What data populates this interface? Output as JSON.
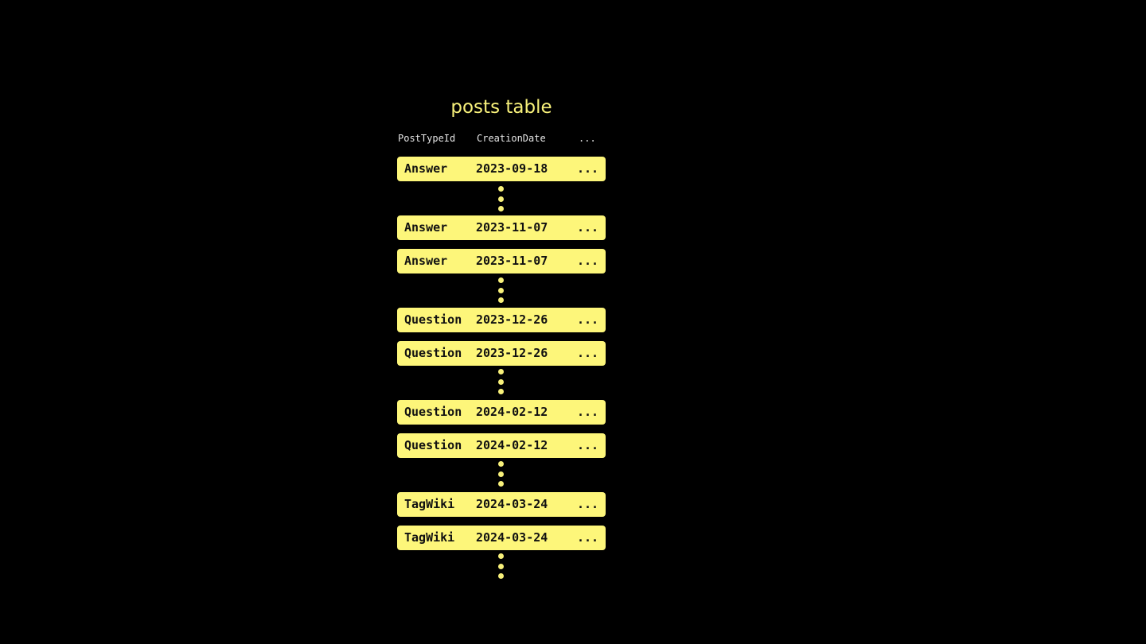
{
  "title": "posts table",
  "columns": [
    "PostTypeId",
    "CreationDate",
    "..."
  ],
  "rows": [
    [
      "Answer",
      "2023-09-18",
      "..."
    ],
    [
      "Answer",
      "2023-11-07",
      "..."
    ],
    [
      "Answer",
      "2023-11-07",
      "..."
    ],
    [
      "Question",
      "2023-12-26",
      "..."
    ],
    [
      "Question",
      "2023-12-26",
      "..."
    ],
    [
      "Question",
      "2024-02-12",
      "..."
    ],
    [
      "Question",
      "2024-02-12",
      "..."
    ],
    [
      "TagWiki",
      "2024-03-24",
      "..."
    ],
    [
      "TagWiki",
      "2024-03-24",
      "..."
    ]
  ],
  "colors": {
    "background": "#000000",
    "accent": "#fdf67a"
  }
}
